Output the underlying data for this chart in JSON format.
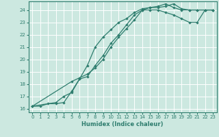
{
  "xlabel": "Humidex (Indice chaleur)",
  "background_color": "#cce8e0",
  "grid_color": "#ffffff",
  "line_color": "#2e7d6e",
  "xlim": [
    -0.5,
    23.5
  ],
  "ylim": [
    15.7,
    24.7
  ],
  "yticks": [
    16,
    17,
    18,
    19,
    20,
    21,
    22,
    23,
    24
  ],
  "xticks": [
    0,
    1,
    2,
    3,
    4,
    5,
    6,
    7,
    8,
    9,
    10,
    11,
    12,
    13,
    14,
    15,
    16,
    17,
    18,
    19,
    20,
    21,
    22,
    23
  ],
  "line1_x": [
    0,
    1,
    2,
    3,
    4,
    5,
    6,
    7,
    8,
    9,
    10,
    11,
    12,
    13,
    14,
    15,
    16,
    17,
    18,
    19,
    20,
    21,
    22,
    23
  ],
  "line1_y": [
    16.2,
    16.2,
    16.4,
    16.4,
    16.5,
    17.4,
    18.4,
    19.5,
    21.0,
    21.8,
    22.4,
    23.0,
    23.3,
    23.8,
    24.1,
    24.2,
    24.2,
    24.3,
    24.5,
    24.1,
    24.0,
    24.0,
    24.0,
    24.0
  ],
  "line2_x": [
    0,
    3,
    4,
    5,
    6,
    7,
    8,
    9,
    10,
    11,
    12,
    13,
    14,
    15,
    16,
    17,
    18,
    19,
    20,
    21,
    22,
    23
  ],
  "line2_y": [
    16.2,
    16.5,
    17.0,
    17.3,
    18.4,
    18.6,
    19.5,
    20.3,
    21.3,
    22.0,
    22.8,
    23.6,
    24.0,
    24.2,
    24.3,
    24.5,
    24.2,
    24.0,
    24.0,
    24.0,
    24.0,
    24.0
  ],
  "line3_x": [
    0,
    5,
    6,
    7,
    8,
    9,
    10,
    11,
    12,
    13,
    14,
    15,
    16,
    17,
    18,
    19,
    20,
    21,
    22,
    23
  ],
  "line3_y": [
    16.2,
    18.2,
    18.5,
    18.8,
    19.3,
    20.0,
    21.0,
    21.8,
    22.5,
    23.2,
    24.0,
    24.0,
    24.0,
    23.8,
    23.6,
    23.3,
    23.0,
    23.0,
    24.0,
    24.0
  ]
}
